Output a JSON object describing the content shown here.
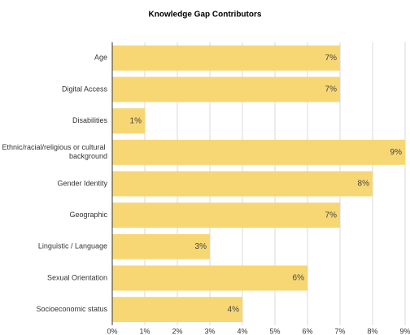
{
  "chart_data": {
    "type": "bar",
    "orientation": "horizontal",
    "title": "Knowledge Gap Contributors",
    "categories": [
      "Age",
      "Digital Access",
      "Disabilities",
      "Ethnic/racial/religious or cultural background",
      "Gender Identity",
      "Geographic",
      "Linguistic / Language",
      "Sexual Orientation",
      "Socioeconomic status"
    ],
    "values": [
      7,
      7,
      1,
      9,
      8,
      7,
      3,
      6,
      4
    ],
    "value_labels": [
      "7%",
      "7%",
      "1%",
      "9%",
      "8%",
      "7%",
      "3%",
      "6%",
      "4%"
    ],
    "color": "#f7d774",
    "xlim": [
      0,
      9
    ],
    "xticks": [
      {
        "value": 0,
        "label": "0%"
      },
      {
        "value": 1,
        "label": "1%"
      },
      {
        "value": 2,
        "label": "2%"
      },
      {
        "value": 3,
        "label": "3%"
      },
      {
        "value": 4,
        "label": "4%"
      },
      {
        "value": 5,
        "label": "5%"
      },
      {
        "value": 6,
        "label": "6%"
      },
      {
        "value": 7,
        "label": "7%"
      },
      {
        "value": 8,
        "label": "8%"
      },
      {
        "value": 9,
        "label": "9%"
      }
    ],
    "grid": true
  }
}
